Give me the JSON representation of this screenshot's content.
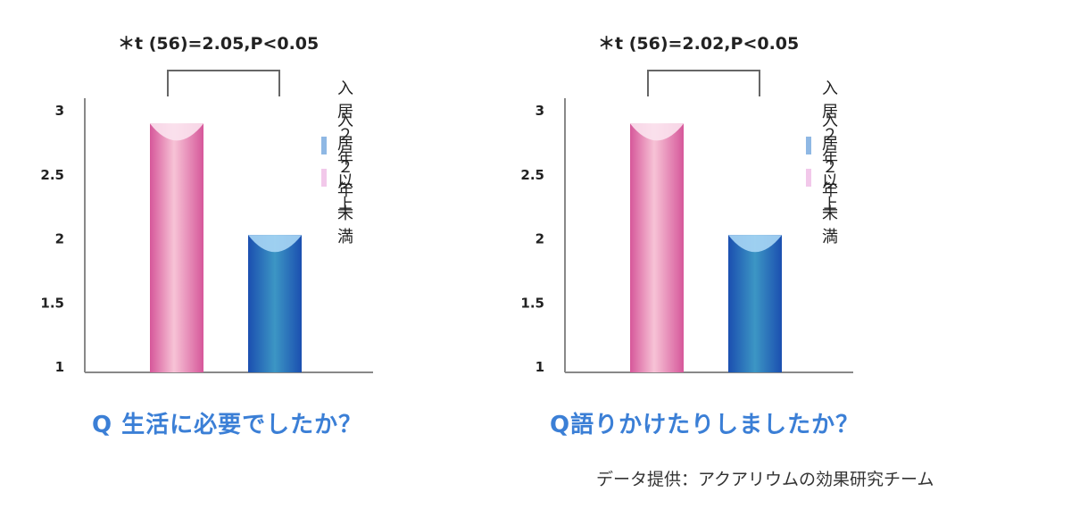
{
  "chart_data": [
    {
      "type": "bar",
      "title": "",
      "question": "Q 生活に必要でしたか？",
      "annotation": "＊t (56)=2.05,P<0.05",
      "ylim": [
        1,
        3
      ],
      "y_ticks": [
        "1",
        "1.5",
        "2",
        "2.5",
        "3"
      ],
      "grid": false,
      "legend_position": "right",
      "series": [
        {
          "name": "入居２年未満",
          "value": 2.9,
          "color": "#f0a8c8"
        },
        {
          "name": "入居２年以上",
          "value": 2.03,
          "color": "#3a8fd0"
        }
      ],
      "legend": [
        {
          "name": "入居２年以上",
          "color": "#8fb8e4"
        },
        {
          "name": "入居２年未満",
          "color": "#f2c8ea"
        }
      ]
    },
    {
      "type": "bar",
      "title": "",
      "question": "Q語りかけたりしましたか？",
      "annotation": "＊t (56)=2.02,P<0.05",
      "ylim": [
        1,
        3
      ],
      "y_ticks": [
        "1",
        "1.5",
        "2",
        "2.5",
        "3"
      ],
      "grid": false,
      "legend_position": "right",
      "series": [
        {
          "name": "入居２年未満",
          "value": 2.9,
          "color": "#f0a8c8"
        },
        {
          "name": "入居２年以上",
          "value": 2.03,
          "color": "#3a8fd0"
        }
      ],
      "legend": [
        {
          "name": "入居２年以上",
          "color": "#8fb8e4"
        },
        {
          "name": "入居２年未満",
          "color": "#f2c8ea"
        }
      ]
    }
  ],
  "footer": {
    "credit": "データ提供：アクアリウムの効果研究チーム"
  }
}
